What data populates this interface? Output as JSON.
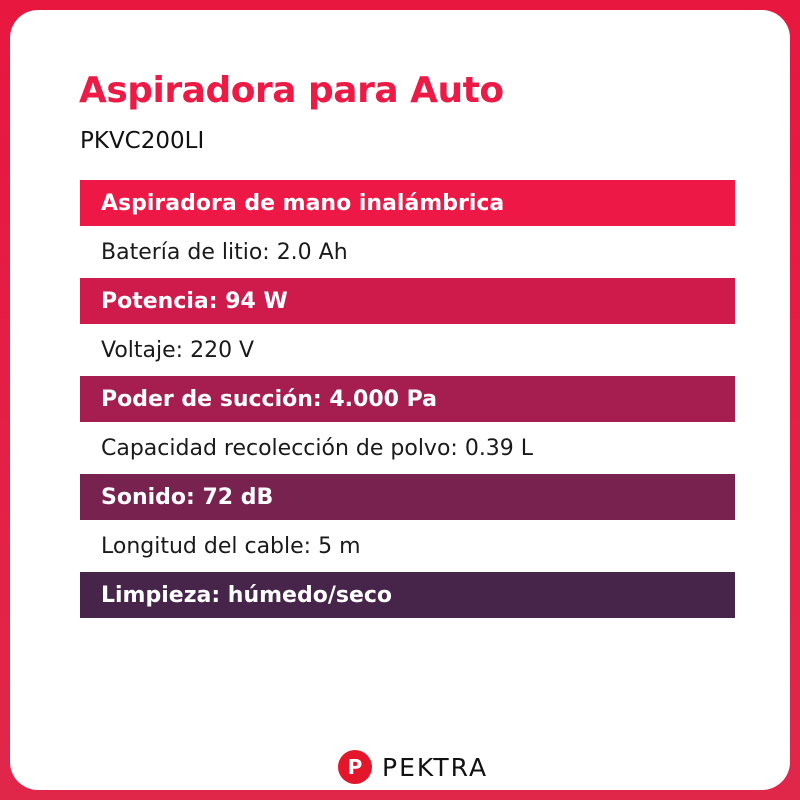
{
  "title": "Aspiradora para Auto",
  "model": "PKVC200LI",
  "specs": [
    {
      "text": "Aspiradora de mano inalámbrica",
      "highlight": true,
      "color": "#ee1846"
    },
    {
      "text": "Batería de litio: 2.0 Ah",
      "highlight": false
    },
    {
      "text": "Potencia: 94 W",
      "highlight": true,
      "color": "#cf1a4c"
    },
    {
      "text": "Voltaje: 220 V",
      "highlight": false
    },
    {
      "text": "Poder de succión: 4.000 Pa",
      "highlight": true,
      "color": "#a51e4f"
    },
    {
      "text": "Capacidad recolección de polvo: 0.39 L",
      "highlight": false
    },
    {
      "text": "Sonido: 72 dB",
      "highlight": true,
      "color": "#78224f"
    },
    {
      "text": "Longitud del cable: 5 m",
      "highlight": false
    },
    {
      "text": "Limpieza: húmedo/seco",
      "highlight": true,
      "color": "#47244a"
    }
  ],
  "brand": {
    "name": "PEKTRA",
    "mark": "P",
    "color": "#e3162b"
  },
  "colors": {
    "accent": "#ec1a45",
    "border": "#e8173f"
  }
}
